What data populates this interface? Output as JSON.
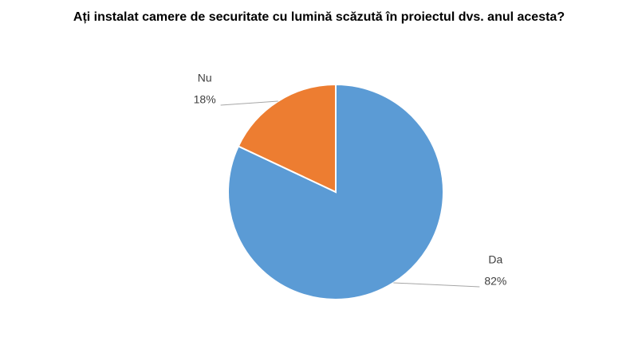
{
  "chart_data": {
    "type": "pie",
    "title": "Ați instalat camere de securitate cu lumină scăzută în proiectul dvs. anul acesta?",
    "categories": [
      "Da",
      "Nu"
    ],
    "values": [
      82,
      18
    ],
    "value_labels": [
      "82%",
      "18%"
    ],
    "colors": [
      "#5b9bd5",
      "#ed7d31"
    ]
  }
}
